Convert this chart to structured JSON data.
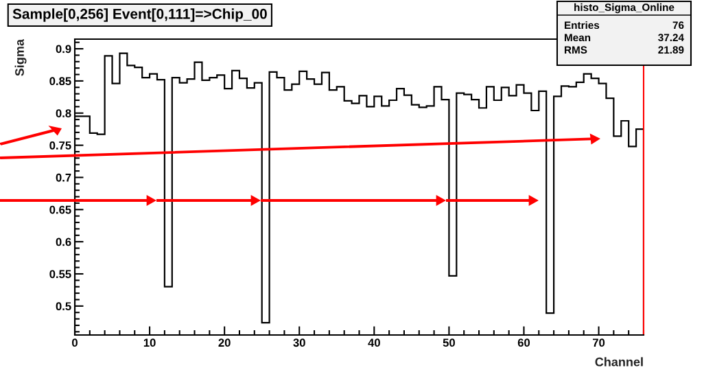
{
  "chart_data": {
    "type": "histogram",
    "title": "Sample[0,256] Event[0,111]=>Chip_00",
    "xlabel": "Channel",
    "ylabel": "Sigma",
    "annotations": [
      "histo_Sigma_Online",
      "Entries",
      "76",
      "Mean",
      "37.24",
      "RMS",
      "21.89"
    ],
    "bins": [
      0,
      1,
      2,
      3,
      4,
      5,
      6,
      7,
      8,
      9,
      10,
      11,
      12,
      13,
      14,
      15,
      16,
      17,
      18,
      19,
      20,
      21,
      22,
      23,
      24,
      25,
      26,
      27,
      28,
      29,
      30,
      31,
      32,
      33,
      34,
      35,
      36,
      37,
      38,
      39,
      40,
      41,
      42,
      43,
      44,
      45,
      46,
      47,
      48,
      49,
      50,
      51,
      52,
      53,
      54,
      55,
      56,
      57,
      58,
      59,
      60,
      61,
      62,
      63,
      64,
      65,
      66,
      67,
      68,
      69,
      70,
      71,
      72,
      73,
      74,
      75,
      76
    ],
    "values": [
      0.795,
      0.795,
      0.769,
      0.767,
      0.889,
      0.846,
      0.893,
      0.874,
      0.871,
      0.855,
      0.861,
      0.852,
      0.53,
      0.855,
      0.847,
      0.853,
      0.879,
      0.851,
      0.855,
      0.859,
      0.838,
      0.866,
      0.854,
      0.839,
      0.847,
      0.474,
      0.864,
      0.855,
      0.836,
      0.845,
      0.865,
      0.853,
      0.845,
      0.863,
      0.836,
      0.841,
      0.819,
      0.815,
      0.827,
      0.81,
      0.826,
      0.811,
      0.82,
      0.838,
      0.828,
      0.813,
      0.809,
      0.811,
      0.841,
      0.821,
      0.547,
      0.831,
      0.829,
      0.821,
      0.808,
      0.841,
      0.82,
      0.84,
      0.827,
      0.844,
      0.831,
      0.804,
      0.834,
      0.489,
      0.826,
      0.842,
      0.841,
      0.848,
      0.861,
      0.854,
      0.846,
      0.823,
      0.764,
      0.788,
      0.748,
      0.775
    ],
    "color": "#000000",
    "xlim": [
      0,
      76
    ],
    "ylim": [
      0.455,
      0.915
    ],
    "xticks": [
      0,
      10,
      20,
      30,
      40,
      50,
      60,
      70
    ],
    "yticks": [
      0.5,
      0.55,
      0.6,
      0.65,
      0.7,
      0.75,
      0.8,
      0.85,
      0.9
    ],
    "grid": false
  }
}
